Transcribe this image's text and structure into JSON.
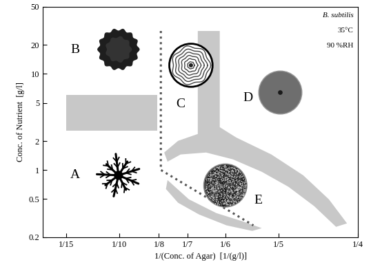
{
  "chart_data": {
    "type": "phase_diagram",
    "x_label": "1/(Conc. of Agar)  [1/(g/l)]",
    "y_label": "Conc. of Nutrient  [g/l]",
    "annotations": [
      "B. subtilis",
      "35°C",
      "90 %RH"
    ],
    "log": "y",
    "xlim": [
      0.052,
      0.25
    ],
    "ylim": [
      0.2,
      50
    ],
    "xticks": [
      {
        "value": 0.0667,
        "label": "1/15"
      },
      {
        "value": 0.1,
        "label": "1/10"
      },
      {
        "value": 0.125,
        "label": "1/8"
      },
      {
        "value": 0.1429,
        "label": "1/7"
      },
      {
        "value": 0.1667,
        "label": "1/6"
      },
      {
        "value": 0.2,
        "label": "1/5"
      },
      {
        "value": 0.25,
        "label": "1/4"
      }
    ],
    "yticks": [
      0.2,
      0.5,
      1,
      2,
      5,
      10,
      20,
      50
    ],
    "regions": [
      {
        "color": "#c8c8c8",
        "x": [
          0.0667,
          0.1238,
          0.1238,
          0.0667
        ],
        "y": [
          2.57,
          2.57,
          6.07,
          6.07
        ]
      },
      {
        "color": "#c8c8c8",
        "x": [
          0.1494,
          0.1632,
          0.1632,
          0.1735,
          0.1956,
          0.2156,
          0.2317,
          0.2431,
          0.2362,
          0.2225,
          0.2064,
          0.1896,
          0.1715,
          0.1546,
          0.1386,
          0.1304,
          0.1283,
          0.137,
          0.1494
        ],
        "y": [
          28.0,
          28.0,
          2.79,
          2.18,
          1.45,
          0.88,
          0.495,
          0.278,
          0.256,
          0.42,
          0.667,
          0.957,
          1.29,
          1.52,
          1.45,
          1.22,
          1.52,
          2.01,
          2.37
        ]
      },
      {
        "color": "#c8c8c8",
        "x": [
          0.1304,
          0.1438,
          0.161,
          0.1775,
          0.1896,
          0.1836,
          0.1675,
          0.1502,
          0.137,
          0.1294
        ],
        "y": [
          0.785,
          0.495,
          0.356,
          0.292,
          0.248,
          0.232,
          0.265,
          0.344,
          0.456,
          0.634
        ]
      }
    ],
    "boundary": {
      "color": "#555555",
      "line_style": "dotted",
      "x": [
        0.1262,
        0.1262,
        0.1843
      ],
      "y": [
        28.0,
        1.0,
        0.265
      ]
    },
    "colonies": [
      {
        "label": "A",
        "label_x": 0.0725,
        "label_y": 0.88,
        "x": 0.0996,
        "y": 0.88
      },
      {
        "label": "B",
        "label_x": 0.0725,
        "label_y": 17.7,
        "x": 0.0996,
        "y": 18.0
      },
      {
        "label": "C",
        "label_x": 0.1386,
        "label_y": 4.8,
        "x": 0.1451,
        "y": 12.3
      },
      {
        "label": "D",
        "label_x": 0.1807,
        "label_y": 5.6,
        "x": 0.2012,
        "y": 6.4
      },
      {
        "label": "E",
        "label_x": 0.1875,
        "label_y": 0.48,
        "x": 0.1667,
        "y": 0.69
      }
    ]
  }
}
